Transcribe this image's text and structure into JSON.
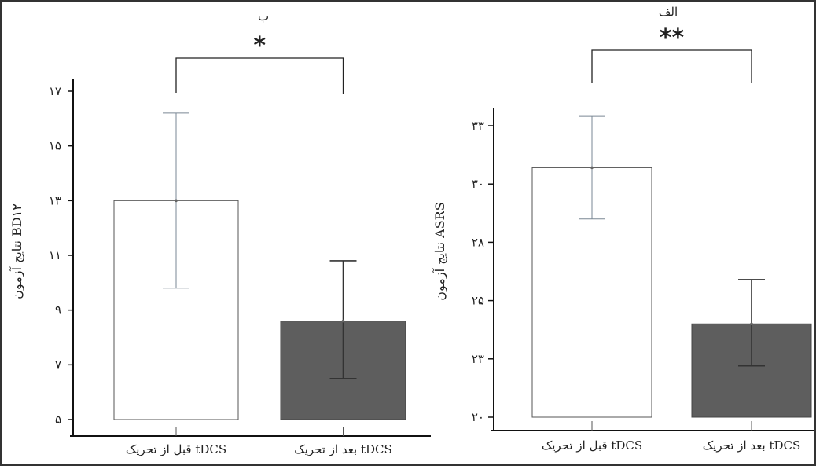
{
  "figure": {
    "border_color": "#333333",
    "bar_before_color": "#ffffff",
    "bar_after_color": "#5e5e5e",
    "error_color": "#7a8794"
  },
  "chart_data": [
    {
      "type": "bar",
      "panel_label": "ب",
      "significance": "*",
      "ylabel": "نتایج آزمون BD۱۲",
      "yticks": [
        "۵",
        "۷",
        "۹",
        "۱۱",
        "۱۳",
        "۱۵",
        "۱۷"
      ],
      "ytick_values": [
        5,
        7,
        9,
        11,
        13,
        15,
        17
      ],
      "ylim": [
        4.5,
        17.5
      ],
      "categories": [
        "قبل از تحریک tDCS",
        "بعد از تحریک tDCS"
      ],
      "values": [
        13.0,
        8.6
      ],
      "error_upper": [
        16.2,
        10.8
      ],
      "error_lower": [
        9.8,
        6.5
      ]
    },
    {
      "type": "bar",
      "panel_label": "الف",
      "significance": "**",
      "ylabel": "نتایج آزمون ASRS",
      "yticks": [
        "۲۰",
        "۲۳",
        "۲۵",
        "۲۸",
        "۳۰",
        "۳۳"
      ],
      "ytick_values": [
        20,
        22.5,
        25,
        27.5,
        30,
        32.5
      ],
      "ylim": [
        19.5,
        33.5
      ],
      "categories": [
        "قبل از تحریک tDCS",
        "بعد از تحریک tDCS"
      ],
      "values": [
        30.7,
        24.0
      ],
      "error_upper": [
        32.9,
        25.9
      ],
      "error_lower": [
        28.5,
        22.2
      ]
    }
  ]
}
